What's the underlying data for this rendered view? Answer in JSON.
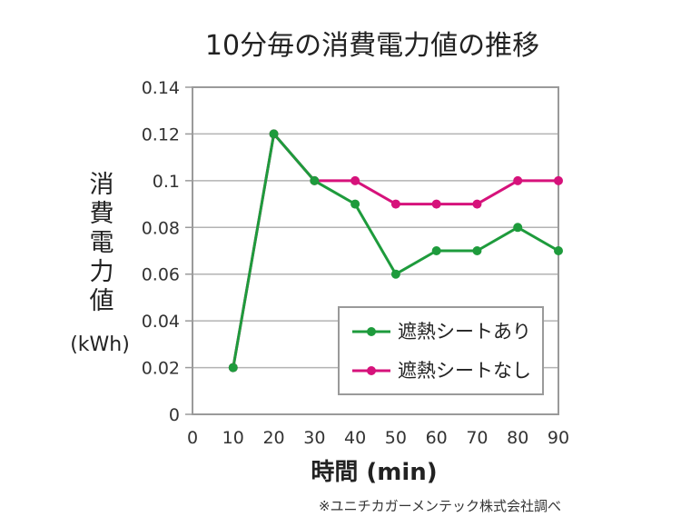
{
  "chart_data": {
    "type": "line",
    "title": "10分毎の消費電力値の推移",
    "xlabel": "時間 (min)",
    "ylabel_chars": [
      "消",
      "費",
      "電",
      "力",
      "値"
    ],
    "ylabel_unit": "(kWh)",
    "x": [
      10,
      20,
      30,
      40,
      50,
      60,
      70,
      80,
      90
    ],
    "xlim": [
      0,
      90
    ],
    "ylim": [
      0,
      0.14
    ],
    "xticks": [
      "0",
      "10",
      "20",
      "30",
      "40",
      "50",
      "60",
      "70",
      "80",
      "90"
    ],
    "yticks": [
      "0",
      "0.02",
      "0.04",
      "0.06",
      "0.08",
      "0.1",
      "0.12",
      "0.14"
    ],
    "grid": true,
    "legend_position": "bottom-right",
    "series": [
      {
        "name": "遮熱シートあり",
        "color": "#1e9b3c",
        "values": [
          0.02,
          0.12,
          0.1,
          0.09,
          0.06,
          0.07,
          0.07,
          0.08,
          0.07
        ]
      },
      {
        "name": "遮熱シートなし",
        "color": "#d6127b",
        "values": [
          0.02,
          0.12,
          0.1,
          0.1,
          0.09,
          0.09,
          0.09,
          0.1,
          0.1
        ]
      }
    ],
    "source_note": "※ユニチカガーメンテック株式会社調べ"
  }
}
